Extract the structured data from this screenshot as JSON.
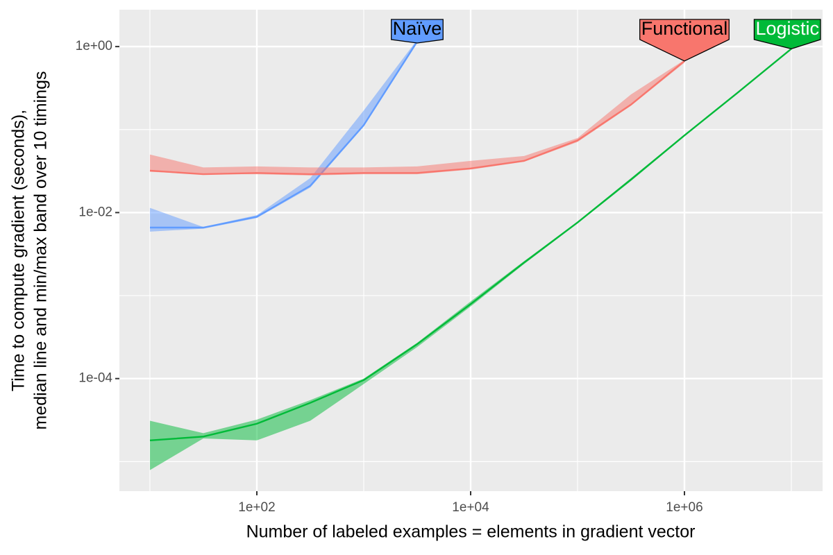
{
  "chart_data": {
    "type": "line",
    "xlabel": "Number of labeled examples = elements in gradient vector",
    "ylabel": [
      "Time to compute gradient (seconds),",
      "median line and min/max band over 10 timings"
    ],
    "log_x": true,
    "log_y": true,
    "grid": true,
    "x": [
      10,
      31.6,
      100,
      316,
      1000,
      3162,
      10000,
      31623,
      100000,
      316228,
      1000000,
      3162278,
      10000000
    ],
    "xlim": [
      5.18,
      19600000
    ],
    "ylim": [
      4.4e-06,
      2.78
    ],
    "xticks": [
      {
        "value": 100,
        "label": "1e+02"
      },
      {
        "value": 10000,
        "label": "1e+04"
      },
      {
        "value": 1000000,
        "label": "1e+06"
      }
    ],
    "yticks": [
      {
        "value": 1,
        "label": "1e+00"
      },
      {
        "value": 0.01,
        "label": "1e-02"
      },
      {
        "value": 0.0001,
        "label": "1e-04"
      }
    ],
    "xminor": [
      10,
      1000,
      100000,
      10000000
    ],
    "yminor": [
      0.1,
      0.001,
      1e-05
    ],
    "series": [
      {
        "name": "Naïve",
        "color": "#619CFF",
        "label_color": "#000000",
        "values": [
          0.0066,
          0.0066,
          0.0089,
          0.021,
          0.113,
          1.15,
          null,
          null,
          null,
          null,
          null,
          null,
          null
        ],
        "min": [
          0.0059,
          0.0064,
          0.0086,
          0.02,
          0.109,
          1.1,
          null,
          null,
          null,
          null,
          null,
          null,
          null
        ],
        "max": [
          0.0114,
          0.0067,
          0.0093,
          0.026,
          0.17,
          1.21,
          null,
          null,
          null,
          null,
          null,
          null,
          null
        ]
      },
      {
        "name": "Functional",
        "color": "#F8766D",
        "label_color": "#000000",
        "values": [
          0.032,
          0.029,
          0.03,
          0.029,
          0.03,
          0.03,
          0.034,
          0.042,
          0.074,
          0.2,
          0.67,
          null,
          null
        ],
        "min": [
          0.031,
          0.029,
          0.029,
          0.028,
          0.029,
          0.029,
          0.033,
          0.041,
          0.071,
          0.194,
          0.64,
          null,
          null
        ],
        "max": [
          0.05,
          0.035,
          0.036,
          0.035,
          0.035,
          0.036,
          0.042,
          0.048,
          0.079,
          0.265,
          0.69,
          null,
          null
        ]
      },
      {
        "name": "Logistic",
        "color": "#00BA38",
        "label_color": "#ffffff",
        "values": [
          1.8e-05,
          2e-05,
          2.86e-05,
          5.1e-05,
          9.6e-05,
          0.00026,
          0.00079,
          0.0025,
          0.0076,
          0.025,
          0.085,
          0.28,
          0.94
        ],
        "min": [
          7.9e-06,
          1.9e-05,
          1.8e-05,
          3.1e-05,
          8.6e-05,
          0.00024,
          0.00074,
          0.0024,
          0.0074,
          0.024,
          0.083,
          0.275,
          0.92
        ],
        "max": [
          3.1e-05,
          2.2e-05,
          3.2e-05,
          5.5e-05,
          0.0001,
          0.00027,
          0.00085,
          0.0026,
          0.0078,
          0.026,
          0.087,
          0.285,
          0.96
        ]
      }
    ]
  }
}
